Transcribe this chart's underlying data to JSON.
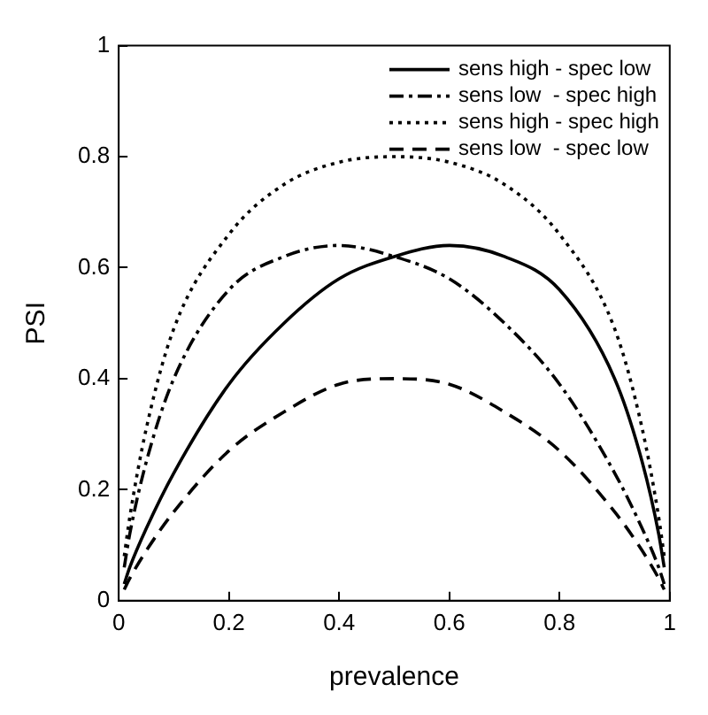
{
  "chart_data": {
    "type": "line",
    "xlabel": "prevalence",
    "ylabel": "PSI",
    "xlim": [
      0,
      1
    ],
    "ylim": [
      0,
      1
    ],
    "xticks": [
      0,
      0.2,
      0.4,
      0.6,
      0.8,
      1
    ],
    "yticks": [
      0,
      0.2,
      0.4,
      0.6,
      0.8,
      1
    ],
    "grid": false,
    "legend": "top right",
    "marker": "none",
    "x": [
      0.01,
      0.02,
      0.05,
      0.1,
      0.2,
      0.3,
      0.4,
      0.5,
      0.6,
      0.7,
      0.8,
      0.9,
      0.95,
      0.98,
      0.99
    ],
    "series": [
      {
        "name": "sens high - spec low",
        "color": "#000000",
        "line_style": "solid",
        "values": [
          0.03,
          0.06,
          0.13,
          0.23,
          0.39,
          0.5,
          0.58,
          0.62,
          0.64,
          0.62,
          0.56,
          0.4,
          0.25,
          0.12,
          0.06
        ]
      },
      {
        "name": "sens low  - spec high",
        "color": "#000000",
        "line_style": "dashdot",
        "values": [
          0.06,
          0.12,
          0.25,
          0.4,
          0.56,
          0.62,
          0.64,
          0.62,
          0.58,
          0.5,
          0.39,
          0.23,
          0.13,
          0.06,
          0.03
        ]
      },
      {
        "name": "sens high - spec high",
        "color": "#000000",
        "line_style": "dotted",
        "values": [
          0.08,
          0.15,
          0.31,
          0.49,
          0.66,
          0.75,
          0.79,
          0.8,
          0.79,
          0.75,
          0.66,
          0.49,
          0.31,
          0.15,
          0.08
        ]
      },
      {
        "name": "sens low  - spec low",
        "color": "#000000",
        "line_style": "dashed",
        "values": [
          0.02,
          0.04,
          0.09,
          0.16,
          0.27,
          0.34,
          0.39,
          0.4,
          0.39,
          0.34,
          0.27,
          0.16,
          0.09,
          0.04,
          0.02
        ]
      }
    ]
  }
}
